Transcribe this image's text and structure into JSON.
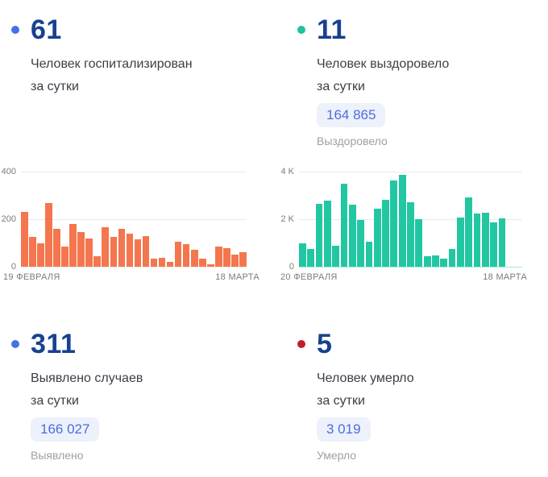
{
  "cards": {
    "hospitalized": {
      "value": "61",
      "title_line1": "Человек госпитализирован",
      "title_line2": "за сутки",
      "bullet_color": "#4472e4"
    },
    "recovered": {
      "value": "11",
      "title_line1": "Человек выздоровело",
      "title_line2": "за сутки",
      "bullet_color": "#1dc2a1",
      "total_badge": "164 865",
      "total_label": "Выздоровело"
    },
    "detected": {
      "value": "311",
      "title_line1": "Выявлено случаев",
      "title_line2": "за сутки",
      "bullet_color": "#4472e4",
      "total_badge": "166 027",
      "total_label": "Выявлено"
    },
    "died": {
      "value": "5",
      "title_line1": "Человек умерло",
      "title_line2": "за сутки",
      "bullet_color": "#c11f2e",
      "total_badge": "3 019",
      "total_label": "Умерло"
    }
  },
  "chart_data": [
    {
      "type": "bar",
      "name": "hospitalized-per-day",
      "bar_color": "#f4764e",
      "baseline_color": "#eaeaea",
      "ylim": [
        0,
        400
      ],
      "grid": true,
      "yticks": [
        {
          "label": "400",
          "value": 400
        },
        {
          "label": "200",
          "value": 200
        },
        {
          "label": "0",
          "value": 0
        }
      ],
      "x_start_label": "19 ФЕВРАЛЯ",
      "x_end_label": "18 МАРТА",
      "values": [
        232,
        125,
        100,
        268,
        158,
        85,
        180,
        145,
        118,
        45,
        165,
        124,
        160,
        138,
        115,
        128,
        35,
        38,
        20,
        105,
        95,
        70,
        33,
        10,
        85,
        79,
        52,
        62
      ]
    },
    {
      "type": "bar",
      "name": "recovered-per-day",
      "bar_color": "#22c7a2",
      "baseline_color": "#a8e6d6",
      "ylim": [
        0,
        4000
      ],
      "grid": true,
      "yticks": [
        {
          "label": "4 K",
          "value": 4000
        },
        {
          "label": "2 K",
          "value": 2000
        },
        {
          "label": "0",
          "value": 0
        }
      ],
      "x_start_label": "20 ФЕВРАЛЯ",
      "x_end_label": "18 МАРТА",
      "values": [
        1000,
        750,
        2660,
        2780,
        870,
        3480,
        2600,
        1960,
        1050,
        2450,
        2800,
        3620,
        3850,
        2720,
        2010,
        430,
        470,
        330,
        750,
        2060,
        2900,
        2230,
        2280,
        1860,
        2020,
        null,
        null
      ]
    }
  ]
}
